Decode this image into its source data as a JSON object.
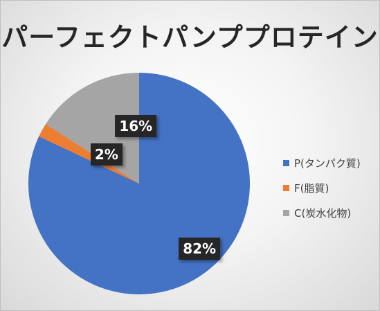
{
  "chart_data": {
    "type": "pie",
    "title": "パーフェクトパンププロテイン",
    "categories": [
      "P(タンパク質)",
      "F(脂質)",
      "C(炭水化物)"
    ],
    "values": [
      82,
      2,
      16
    ],
    "data_labels": [
      "82%",
      "2%",
      "16%"
    ],
    "colors": [
      "#4472c4",
      "#ed7d31",
      "#a5a5a5"
    ],
    "legend_position": "right",
    "start_angle_deg": 0,
    "direction": "clockwise"
  }
}
